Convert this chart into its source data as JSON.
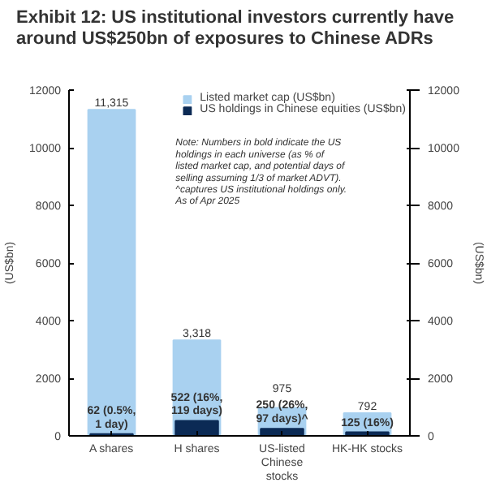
{
  "chart_data": {
    "type": "bar",
    "title": "Exhibit 12: US institutional investors currently have around US$250bn of exposures to Chinese ADRs",
    "categories": [
      "A shares",
      "H shares",
      "US-listed Chinese stocks",
      "HK-HK stocks"
    ],
    "series": [
      {
        "name": "Listed market cap (US$bn)",
        "color": "#a9d1f0",
        "values": [
          11315,
          3318,
          975,
          792
        ],
        "value_labels": [
          "11,315",
          "3,318",
          "975",
          "792"
        ]
      },
      {
        "name": "US holdings in Chinese equities (US$bn)",
        "color": "#0b2a55",
        "values": [
          62,
          522,
          250,
          125
        ],
        "value_labels": [
          "62 (0.5%,\n1 day)",
          "522 (16%,\n119 days)",
          "250 (26%,\n97 days)^",
          "125 (16%)"
        ]
      }
    ],
    "ylabel": "(US$bn)",
    "y2label": "(US$bn)",
    "ylim": [
      0,
      12000
    ],
    "yticks": [
      0,
      2000,
      4000,
      6000,
      8000,
      10000,
      12000
    ],
    "y2lim": [
      0,
      12000
    ],
    "y2ticks": [
      0,
      2000,
      4000,
      6000,
      8000,
      10000,
      12000
    ],
    "annotations": [
      "Note: Numbers in bold indicate the US\nholdings in each universe (as % of\nlisted market cap, and potential days of\nselling assuming 1/3 of market ADVT).\n^captures US institutional holdings only.\nAs of Apr 2025"
    ],
    "legend": "top right",
    "grid": false
  }
}
